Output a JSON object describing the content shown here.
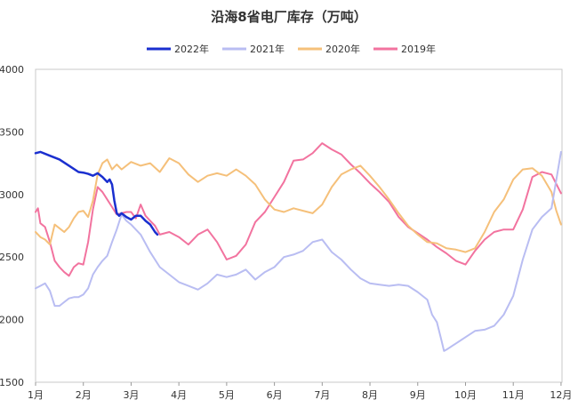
{
  "chart_data": {
    "type": "line",
    "title": "沿海8省电厂库存（万吨）",
    "xlabel": "",
    "ylabel": "",
    "ylim": [
      1500,
      4000
    ],
    "yticks": [
      1500,
      2000,
      2500,
      3000,
      3500,
      4000
    ],
    "xlim": [
      1,
      12.02
    ],
    "xticks": [
      {
        "value": 1,
        "label": "1月"
      },
      {
        "value": 2,
        "label": "2月"
      },
      {
        "value": 3,
        "label": "3月"
      },
      {
        "value": 4,
        "label": "4月"
      },
      {
        "value": 5,
        "label": "5月"
      },
      {
        "value": 6,
        "label": "6月"
      },
      {
        "value": 7,
        "label": "7月"
      },
      {
        "value": 8,
        "label": "8月"
      },
      {
        "value": 9,
        "label": "9月"
      },
      {
        "value": 10,
        "label": "10月"
      },
      {
        "value": 11,
        "label": "11月"
      },
      {
        "value": 12,
        "label": "12月"
      }
    ],
    "grid": false,
    "legend_position": "top",
    "series": [
      {
        "name": "2022年",
        "color": "#1a2fcf",
        "line_width": 2.5,
        "x": [
          1.0,
          1.1,
          1.3,
          1.5,
          1.7,
          1.9,
          2.0,
          2.1,
          2.2,
          2.3,
          2.4,
          2.5,
          2.55,
          2.6,
          2.65,
          2.7,
          2.75,
          2.8,
          2.9,
          3.0,
          3.1,
          3.2,
          3.3,
          3.4,
          3.5,
          3.55
        ],
        "values": [
          3330,
          3340,
          3310,
          3280,
          3230,
          3180,
          3175,
          3165,
          3150,
          3170,
          3140,
          3100,
          3120,
          3080,
          2950,
          2850,
          2830,
          2850,
          2820,
          2800,
          2830,
          2830,
          2790,
          2760,
          2700,
          2680
        ]
      },
      {
        "name": "2021年",
        "color": "#b9bdf2",
        "line_width": 2,
        "x": [
          1.0,
          1.1,
          1.2,
          1.3,
          1.4,
          1.5,
          1.6,
          1.7,
          1.8,
          1.9,
          2.0,
          2.1,
          2.2,
          2.3,
          2.4,
          2.5,
          2.6,
          2.7,
          2.8,
          2.9,
          3.0,
          3.2,
          3.4,
          3.6,
          3.8,
          4.0,
          4.2,
          4.4,
          4.6,
          4.8,
          5.0,
          5.2,
          5.4,
          5.6,
          5.8,
          6.0,
          6.2,
          6.4,
          6.6,
          6.8,
          7.0,
          7.2,
          7.4,
          7.6,
          7.8,
          8.0,
          8.2,
          8.4,
          8.6,
          8.8,
          9.0,
          9.2,
          9.3,
          9.4,
          9.5,
          9.55,
          9.6,
          9.8,
          10.0,
          10.2,
          10.4,
          10.6,
          10.8,
          11.0,
          11.2,
          11.4,
          11.6,
          11.8,
          12.0
        ],
        "values": [
          2250,
          2270,
          2290,
          2230,
          2110,
          2110,
          2140,
          2170,
          2180,
          2180,
          2200,
          2250,
          2360,
          2420,
          2470,
          2510,
          2620,
          2720,
          2840,
          2790,
          2760,
          2680,
          2540,
          2420,
          2360,
          2300,
          2270,
          2240,
          2290,
          2360,
          2340,
          2360,
          2400,
          2320,
          2380,
          2420,
          2500,
          2520,
          2550,
          2620,
          2640,
          2540,
          2480,
          2400,
          2330,
          2290,
          2280,
          2270,
          2280,
          2270,
          2220,
          2160,
          2040,
          1980,
          1830,
          1750,
          1760,
          1810,
          1860,
          1910,
          1920,
          1950,
          2040,
          2190,
          2480,
          2720,
          2820,
          2890,
          3340
        ]
      },
      {
        "name": "2020年",
        "color": "#f5c07a",
        "line_width": 2,
        "x": [
          1.0,
          1.1,
          1.2,
          1.3,
          1.4,
          1.5,
          1.6,
          1.7,
          1.8,
          1.9,
          2.0,
          2.1,
          2.2,
          2.3,
          2.4,
          2.5,
          2.6,
          2.7,
          2.8,
          3.0,
          3.2,
          3.4,
          3.6,
          3.8,
          4.0,
          4.2,
          4.4,
          4.6,
          4.8,
          5.0,
          5.2,
          5.4,
          5.6,
          5.8,
          6.0,
          6.2,
          6.4,
          6.6,
          6.8,
          7.0,
          7.2,
          7.4,
          7.6,
          7.8,
          8.0,
          8.2,
          8.4,
          8.6,
          8.8,
          9.0,
          9.2,
          9.4,
          9.6,
          9.8,
          10.0,
          10.2,
          10.4,
          10.6,
          10.8,
          11.0,
          11.2,
          11.4,
          11.6,
          11.8,
          11.9,
          12.0
        ],
        "values": [
          2700,
          2660,
          2640,
          2600,
          2760,
          2730,
          2700,
          2740,
          2810,
          2860,
          2870,
          2820,
          2950,
          3160,
          3250,
          3280,
          3200,
          3240,
          3200,
          3260,
          3230,
          3250,
          3180,
          3290,
          3250,
          3160,
          3100,
          3150,
          3170,
          3150,
          3200,
          3150,
          3080,
          2960,
          2880,
          2860,
          2890,
          2870,
          2850,
          2920,
          3060,
          3160,
          3200,
          3230,
          3150,
          3060,
          2960,
          2850,
          2750,
          2680,
          2620,
          2610,
          2570,
          2560,
          2540,
          2570,
          2700,
          2860,
          2960,
          3120,
          3200,
          3210,
          3150,
          3020,
          2870,
          2760
        ]
      },
      {
        "name": "2019年",
        "color": "#f2739f",
        "line_width": 2,
        "x": [
          1.0,
          1.05,
          1.1,
          1.2,
          1.3,
          1.4,
          1.5,
          1.6,
          1.7,
          1.8,
          1.9,
          2.0,
          2.1,
          2.2,
          2.3,
          2.4,
          2.5,
          2.6,
          2.7,
          2.8,
          2.9,
          3.0,
          3.1,
          3.2,
          3.3,
          3.4,
          3.5,
          3.6,
          3.8,
          4.0,
          4.2,
          4.4,
          4.6,
          4.8,
          5.0,
          5.2,
          5.4,
          5.6,
          5.8,
          6.0,
          6.2,
          6.4,
          6.6,
          6.8,
          7.0,
          7.2,
          7.4,
          7.6,
          7.8,
          8.0,
          8.2,
          8.4,
          8.6,
          8.8,
          9.0,
          9.2,
          9.4,
          9.6,
          9.8,
          10.0,
          10.2,
          10.4,
          10.6,
          10.8,
          11.0,
          11.2,
          11.4,
          11.6,
          11.8,
          12.0
        ],
        "values": [
          2860,
          2890,
          2770,
          2740,
          2620,
          2470,
          2420,
          2380,
          2350,
          2420,
          2450,
          2440,
          2620,
          2880,
          3060,
          3020,
          2960,
          2900,
          2840,
          2850,
          2860,
          2860,
          2810,
          2920,
          2830,
          2790,
          2750,
          2680,
          2700,
          2660,
          2600,
          2680,
          2720,
          2620,
          2480,
          2510,
          2600,
          2780,
          2860,
          2980,
          3100,
          3270,
          3280,
          3330,
          3410,
          3360,
          3320,
          3240,
          3170,
          3090,
          3020,
          2940,
          2820,
          2740,
          2690,
          2640,
          2580,
          2530,
          2470,
          2440,
          2550,
          2640,
          2700,
          2720,
          2720,
          2880,
          3140,
          3180,
          3160,
          3010
        ]
      }
    ]
  }
}
